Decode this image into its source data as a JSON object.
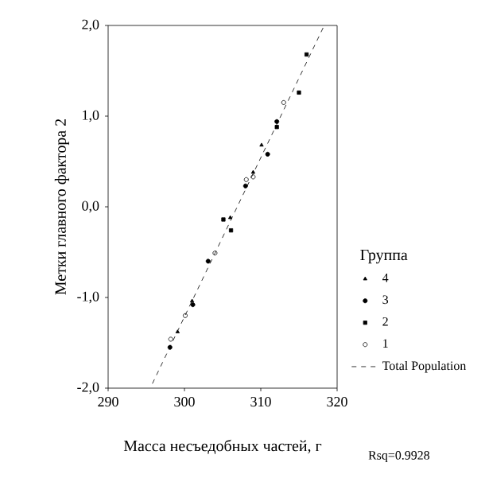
{
  "chart_data": {
    "type": "scatter",
    "xlabel": "Масса несъедобных частей, г",
    "ylabel": "Метки главного фактора 2",
    "legend_title": "Группа",
    "legend": "right",
    "xlim": [
      290,
      320
    ],
    "ylim": [
      -2,
      2
    ],
    "xticks": [
      290,
      300,
      310,
      320
    ],
    "yticks": [
      {
        "value": -2,
        "label": "-2,0"
      },
      {
        "value": -1,
        "label": "-1,0"
      },
      {
        "value": 0,
        "label": "0,0"
      },
      {
        "value": 1,
        "label": "1,0"
      },
      {
        "value": 2,
        "label": "2,0"
      }
    ],
    "series": [
      {
        "name": "4",
        "color": "#000000",
        "marker": "triangle",
        "x": [
          299.1,
          301.0,
          306.0,
          309.0,
          310.1
        ],
        "values": [
          -1.38,
          -1.04,
          -0.12,
          0.38,
          0.68
        ]
      },
      {
        "name": "3",
        "color": "#000000",
        "marker": "circle",
        "x": [
          298.1,
          301.1,
          303.1,
          308.0,
          310.9,
          312.1
        ],
        "values": [
          -1.55,
          -1.08,
          -0.6,
          0.23,
          0.58,
          0.94
        ]
      },
      {
        "name": "2",
        "color": "#000000",
        "marker": "square",
        "x": [
          305.1,
          306.1,
          312.1,
          315.0,
          316.0
        ],
        "values": [
          -0.14,
          -0.26,
          0.88,
          1.26,
          1.68
        ]
      },
      {
        "name": "1",
        "color": "#000000",
        "marker": "open circle",
        "x": [
          298.2,
          300.1,
          304.0,
          308.1,
          309.0,
          313.0
        ],
        "values": [
          -1.46,
          -1.2,
          -0.51,
          0.3,
          0.33,
          1.15
        ]
      },
      {
        "name": "Total Population",
        "type": "line",
        "line_style": "dashed",
        "color": "#000000",
        "x": [
          295.8,
          318.2
        ],
        "values": [
          -1.95,
          1.98
        ]
      }
    ],
    "annotations": [
      "Rsq=0.9928"
    ]
  }
}
